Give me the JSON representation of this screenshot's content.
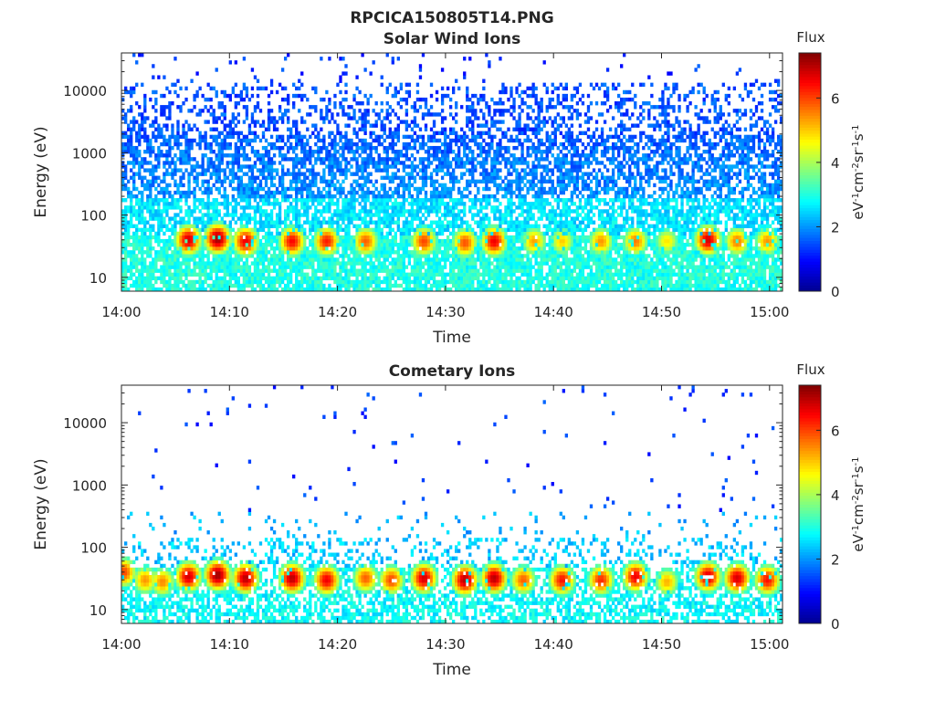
{
  "figure": {
    "title": "RPCICA150805T14.PNG",
    "colorbar_colors": [
      "#00008f",
      "#0000ff",
      "#0080ff",
      "#00ffff",
      "#80ff80",
      "#ffff00",
      "#ff8000",
      "#ff0000",
      "#800000"
    ]
  },
  "chart_data": [
    {
      "type": "heatmap",
      "title": "Solar Wind Ions",
      "xlabel": "Time",
      "ylabel": "Energy (eV)",
      "x_ticks": [
        "14:00",
        "14:10",
        "14:20",
        "14:30",
        "14:40",
        "14:50",
        "15:00"
      ],
      "x_tick_minutes": [
        0,
        10,
        20,
        30,
        40,
        50,
        60
      ],
      "xlim_minutes": [
        0,
        61.2
      ],
      "y_scale": "log",
      "y_ticks": [
        "10",
        "100",
        "1000",
        "10000"
      ],
      "y_tick_values": [
        10,
        100,
        1000,
        10000
      ],
      "ylim": [
        6,
        40000
      ],
      "colorbar": {
        "title": "Flux",
        "label": "eV-1cm-2sr-1s-1",
        "ticks": [
          "0",
          "2",
          "4",
          "6"
        ],
        "tick_values": [
          0,
          2,
          4,
          6
        ],
        "range": [
          0,
          7.4
        ]
      },
      "low_energy_peaks": [
        {
          "time_min": 6.2,
          "energy_ev": 40,
          "flux": 6.8
        },
        {
          "time_min": 8.9,
          "energy_ev": 42,
          "flux": 7.2
        },
        {
          "time_min": 11.5,
          "energy_ev": 38,
          "flux": 6.6
        },
        {
          "time_min": 15.8,
          "energy_ev": 38,
          "flux": 6.5
        },
        {
          "time_min": 19.0,
          "energy_ev": 38,
          "flux": 6.3
        },
        {
          "time_min": 22.6,
          "energy_ev": 38,
          "flux": 5.8
        },
        {
          "time_min": 28.0,
          "energy_ev": 38,
          "flux": 6.0
        },
        {
          "time_min": 31.8,
          "energy_ev": 36,
          "flux": 5.9
        },
        {
          "time_min": 34.5,
          "energy_ev": 38,
          "flux": 6.6
        },
        {
          "time_min": 38.2,
          "energy_ev": 38,
          "flux": 5.3
        },
        {
          "time_min": 40.8,
          "energy_ev": 38,
          "flux": 5.0
        },
        {
          "time_min": 44.4,
          "energy_ev": 38,
          "flux": 5.4
        },
        {
          "time_min": 47.6,
          "energy_ev": 38,
          "flux": 5.6
        },
        {
          "time_min": 50.5,
          "energy_ev": 38,
          "flux": 4.8
        },
        {
          "time_min": 54.3,
          "energy_ev": 40,
          "flux": 6.8
        },
        {
          "time_min": 57.0,
          "energy_ev": 38,
          "flux": 5.6
        },
        {
          "time_min": 59.8,
          "energy_ev": 38,
          "flux": 5.4
        }
      ]
    },
    {
      "type": "heatmap",
      "title": "Cometary Ions",
      "xlabel": "Time",
      "ylabel": "Energy (eV)",
      "x_ticks": [
        "14:00",
        "14:10",
        "14:20",
        "14:30",
        "14:40",
        "14:50",
        "15:00"
      ],
      "x_tick_minutes": [
        0,
        10,
        20,
        30,
        40,
        50,
        60
      ],
      "xlim_minutes": [
        0,
        61.2
      ],
      "y_scale": "log",
      "y_ticks": [
        "10",
        "100",
        "1000",
        "10000"
      ],
      "y_tick_values": [
        10,
        100,
        1000,
        10000
      ],
      "ylim": [
        6,
        40000
      ],
      "colorbar": {
        "title": "Flux",
        "label": "eV-1cm-2sr-1s-1",
        "ticks": [
          "0",
          "2",
          "4",
          "6"
        ],
        "tick_values": [
          0,
          2,
          4,
          6
        ],
        "range": [
          0,
          7.4
        ]
      },
      "low_energy_peaks": [
        {
          "time_min": 0.2,
          "energy_ev": 40,
          "flux": 6.0
        },
        {
          "time_min": 2.2,
          "energy_ev": 30,
          "flux": 5.4
        },
        {
          "time_min": 3.8,
          "energy_ev": 28,
          "flux": 5.5
        },
        {
          "time_min": 6.2,
          "energy_ev": 34,
          "flux": 6.8
        },
        {
          "time_min": 8.9,
          "energy_ev": 36,
          "flux": 7.2
        },
        {
          "time_min": 11.5,
          "energy_ev": 32,
          "flux": 7.0
        },
        {
          "time_min": 15.8,
          "energy_ev": 32,
          "flux": 7.0
        },
        {
          "time_min": 19.0,
          "energy_ev": 30,
          "flux": 6.6
        },
        {
          "time_min": 22.6,
          "energy_ev": 32,
          "flux": 5.8
        },
        {
          "time_min": 25.0,
          "energy_ev": 30,
          "flux": 6.0
        },
        {
          "time_min": 28.0,
          "energy_ev": 32,
          "flux": 6.8
        },
        {
          "time_min": 31.8,
          "energy_ev": 30,
          "flux": 7.0
        },
        {
          "time_min": 34.5,
          "energy_ev": 32,
          "flux": 7.0
        },
        {
          "time_min": 37.2,
          "energy_ev": 30,
          "flux": 5.8
        },
        {
          "time_min": 40.8,
          "energy_ev": 30,
          "flux": 6.4
        },
        {
          "time_min": 44.4,
          "energy_ev": 30,
          "flux": 6.2
        },
        {
          "time_min": 47.6,
          "energy_ev": 34,
          "flux": 6.6
        },
        {
          "time_min": 50.5,
          "energy_ev": 28,
          "flux": 5.2
        },
        {
          "time_min": 54.3,
          "energy_ev": 34,
          "flux": 6.8
        },
        {
          "time_min": 57.0,
          "energy_ev": 32,
          "flux": 6.8
        },
        {
          "time_min": 59.8,
          "energy_ev": 30,
          "flux": 6.4
        }
      ]
    }
  ]
}
